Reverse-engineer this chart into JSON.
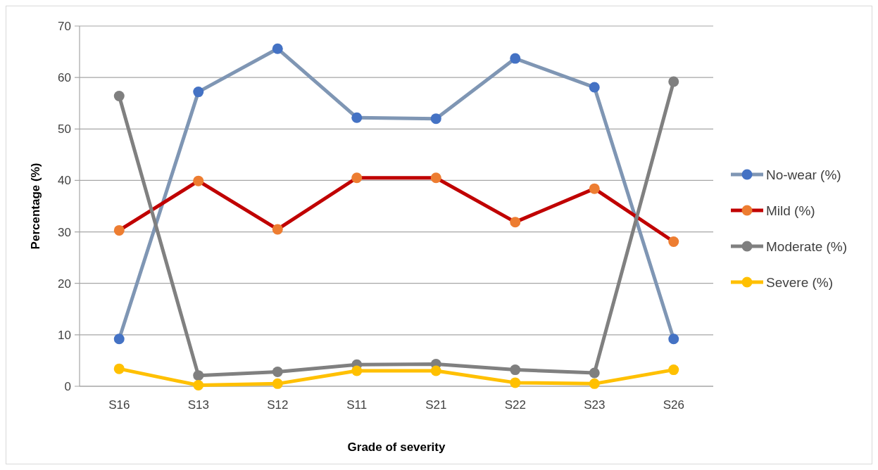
{
  "chart_data": {
    "type": "line",
    "xlabel": "Grade of severity",
    "ylabel": "Percentage (%)",
    "categories": [
      "S16",
      "S13",
      "S12",
      "S11",
      "S21",
      "S22",
      "S23",
      "S26"
    ],
    "ylim": [
      0,
      70
    ],
    "yticks": [
      0,
      10,
      20,
      30,
      40,
      50,
      60,
      70
    ],
    "grid": "y",
    "legend": "right",
    "marker": "circle",
    "line_style": "solid",
    "series": [
      {
        "name": "No-wear (%)",
        "color": "#7f96b4",
        "colors": [
          "#4472c4",
          "#4472c4",
          "#4472c4",
          "#4472c4",
          "#4472c4",
          "#4472c4",
          "#4472c4",
          "#4472c4"
        ],
        "values": [
          9.2,
          57.2,
          65.6,
          52.2,
          52.0,
          63.7,
          58.1,
          9.2
        ]
      },
      {
        "name": "Mild (%)",
        "color": "#c00000",
        "colors": [
          "#ed7d31",
          "#ed7d31",
          "#ed7d31",
          "#ed7d31",
          "#ed7d31",
          "#ed7d31",
          "#ed7d31",
          "#ed7d31"
        ],
        "values": [
          30.3,
          39.9,
          30.5,
          40.5,
          40.5,
          31.9,
          38.4,
          28.1
        ]
      },
      {
        "name": "Moderate (%)",
        "color": "#808080",
        "colors": [
          "#7f7f7f",
          "#7f7f7f",
          "#7f7f7f",
          "#7f7f7f",
          "#7f7f7f",
          "#7f7f7f",
          "#7f7f7f",
          "#7f7f7f"
        ],
        "values": [
          56.4,
          2.1,
          2.8,
          4.2,
          4.3,
          3.2,
          2.6,
          59.2
        ]
      },
      {
        "name": "Severe (%)",
        "color": "#ffc000",
        "colors": [
          "#ffc000",
          "#ffc000",
          "#ffc000",
          "#ffc000",
          "#ffc000",
          "#ffc000",
          "#ffc000",
          "#ffc000"
        ],
        "values": [
          3.4,
          0.2,
          0.5,
          3.0,
          3.0,
          0.7,
          0.5,
          3.2
        ]
      }
    ]
  }
}
